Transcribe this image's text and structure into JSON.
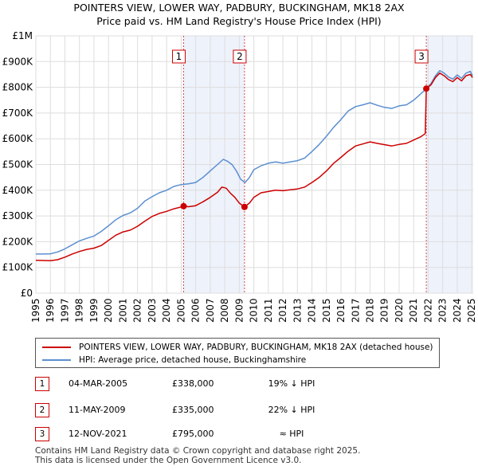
{
  "chart_data": {
    "type": "line",
    "title": "POINTERS VIEW, LOWER WAY, PADBURY, BUCKINGHAM, MK18 2AX",
    "subtitle": "Price paid vs. HM Land Registry's House Price Index (HPI)",
    "xlim": [
      1995,
      2025.1
    ],
    "ylim": [
      0,
      1000000
    ],
    "x_ticks": [
      "1995",
      "1996",
      "1997",
      "1998",
      "1999",
      "2000",
      "2001",
      "2002",
      "2003",
      "2004",
      "2005",
      "2006",
      "2007",
      "2008",
      "2009",
      "2010",
      "2011",
      "2012",
      "2013",
      "2014",
      "2015",
      "2016",
      "2017",
      "2018",
      "2019",
      "2020",
      "2021",
      "2022",
      "2023",
      "2024",
      "2025"
    ],
    "y_ticks": [
      {
        "value": 0,
        "label": "£0"
      },
      {
        "value": 100000,
        "label": "£100K"
      },
      {
        "value": 200000,
        "label": "£200K"
      },
      {
        "value": 300000,
        "label": "£300K"
      },
      {
        "value": 400000,
        "label": "£400K"
      },
      {
        "value": 500000,
        "label": "£500K"
      },
      {
        "value": 600000,
        "label": "£600K"
      },
      {
        "value": 700000,
        "label": "£700K"
      },
      {
        "value": 800000,
        "label": "£800K"
      },
      {
        "value": 900000,
        "label": "£900K"
      },
      {
        "value": 1000000,
        "label": "£1M"
      }
    ],
    "shaded_ranges": [
      [
        2005.17,
        2009.36
      ],
      [
        2021.87,
        2025.1
      ]
    ],
    "series": [
      {
        "name": "POINTERS VIEW, LOWER WAY, PADBURY, BUCKINGHAM, MK18 2AX (detached house)",
        "color": "#cc0000",
        "points": [
          [
            1995,
            128000
          ],
          [
            1995.5,
            127000
          ],
          [
            1996,
            126000
          ],
          [
            1996.5,
            130000
          ],
          [
            1997,
            140000
          ],
          [
            1997.5,
            152000
          ],
          [
            1998,
            162000
          ],
          [
            1998.5,
            170000
          ],
          [
            1999,
            175000
          ],
          [
            1999.5,
            185000
          ],
          [
            2000,
            205000
          ],
          [
            2000.5,
            225000
          ],
          [
            2001,
            238000
          ],
          [
            2001.5,
            245000
          ],
          [
            2002,
            260000
          ],
          [
            2002.5,
            280000
          ],
          [
            2003,
            298000
          ],
          [
            2003.5,
            310000
          ],
          [
            2004,
            318000
          ],
          [
            2004.5,
            328000
          ],
          [
            2005,
            335000
          ],
          [
            2005.17,
            338000
          ],
          [
            2005.5,
            336000
          ],
          [
            2006,
            340000
          ],
          [
            2006.5,
            355000
          ],
          [
            2007,
            372000
          ],
          [
            2007.5,
            392000
          ],
          [
            2007.8,
            412000
          ],
          [
            2008.1,
            408000
          ],
          [
            2008.4,
            388000
          ],
          [
            2008.7,
            372000
          ],
          [
            2009,
            350000
          ],
          [
            2009.36,
            335000
          ],
          [
            2009.7,
            350000
          ],
          [
            2010,
            372000
          ],
          [
            2010.5,
            390000
          ],
          [
            2011,
            395000
          ],
          [
            2011.5,
            400000
          ],
          [
            2012,
            398000
          ],
          [
            2012.5,
            402000
          ],
          [
            2013,
            405000
          ],
          [
            2013.5,
            412000
          ],
          [
            2014,
            430000
          ],
          [
            2014.5,
            450000
          ],
          [
            2015,
            475000
          ],
          [
            2015.5,
            505000
          ],
          [
            2016,
            528000
          ],
          [
            2016.5,
            552000
          ],
          [
            2017,
            572000
          ],
          [
            2017.5,
            580000
          ],
          [
            2018,
            588000
          ],
          [
            2018.5,
            582000
          ],
          [
            2019,
            577000
          ],
          [
            2019.5,
            572000
          ],
          [
            2020,
            578000
          ],
          [
            2020.5,
            582000
          ],
          [
            2021,
            595000
          ],
          [
            2021.5,
            608000
          ],
          [
            2021.8,
            620000
          ],
          [
            2021.87,
            795000
          ],
          [
            2022.2,
            810000
          ],
          [
            2022.5,
            838000
          ],
          [
            2022.8,
            855000
          ],
          [
            2023.1,
            845000
          ],
          [
            2023.4,
            830000
          ],
          [
            2023.7,
            822000
          ],
          [
            2024,
            838000
          ],
          [
            2024.3,
            825000
          ],
          [
            2024.6,
            845000
          ],
          [
            2024.9,
            850000
          ],
          [
            2025.05,
            838000
          ]
        ]
      },
      {
        "name": "HPI: Average price, detached house, Buckinghamshire",
        "color": "#5b8fd0",
        "points": [
          [
            1995,
            152000
          ],
          [
            1995.5,
            152000
          ],
          [
            1996,
            153000
          ],
          [
            1996.5,
            160000
          ],
          [
            1997,
            172000
          ],
          [
            1997.5,
            188000
          ],
          [
            1998,
            203000
          ],
          [
            1998.5,
            213000
          ],
          [
            1999,
            222000
          ],
          [
            1999.5,
            240000
          ],
          [
            2000,
            262000
          ],
          [
            2000.5,
            285000
          ],
          [
            2001,
            302000
          ],
          [
            2001.5,
            312000
          ],
          [
            2002,
            330000
          ],
          [
            2002.5,
            358000
          ],
          [
            2003,
            375000
          ],
          [
            2003.5,
            390000
          ],
          [
            2004,
            400000
          ],
          [
            2004.5,
            415000
          ],
          [
            2005,
            422000
          ],
          [
            2005.5,
            425000
          ],
          [
            2006,
            430000
          ],
          [
            2006.5,
            450000
          ],
          [
            2007,
            475000
          ],
          [
            2007.5,
            500000
          ],
          [
            2007.9,
            520000
          ],
          [
            2008.2,
            512000
          ],
          [
            2008.5,
            500000
          ],
          [
            2008.8,
            475000
          ],
          [
            2009.1,
            442000
          ],
          [
            2009.4,
            430000
          ],
          [
            2009.7,
            450000
          ],
          [
            2010,
            480000
          ],
          [
            2010.5,
            495000
          ],
          [
            2011,
            505000
          ],
          [
            2011.5,
            510000
          ],
          [
            2012,
            505000
          ],
          [
            2012.5,
            510000
          ],
          [
            2013,
            515000
          ],
          [
            2013.5,
            525000
          ],
          [
            2014,
            550000
          ],
          [
            2014.5,
            578000
          ],
          [
            2015,
            610000
          ],
          [
            2015.5,
            645000
          ],
          [
            2016,
            675000
          ],
          [
            2016.5,
            708000
          ],
          [
            2017,
            725000
          ],
          [
            2017.5,
            732000
          ],
          [
            2018,
            740000
          ],
          [
            2018.5,
            730000
          ],
          [
            2019,
            722000
          ],
          [
            2019.5,
            718000
          ],
          [
            2020,
            728000
          ],
          [
            2020.5,
            732000
          ],
          [
            2021,
            750000
          ],
          [
            2021.5,
            775000
          ],
          [
            2021.87,
            795000
          ],
          [
            2022.2,
            815000
          ],
          [
            2022.5,
            845000
          ],
          [
            2022.8,
            865000
          ],
          [
            2023.1,
            855000
          ],
          [
            2023.4,
            840000
          ],
          [
            2023.7,
            832000
          ],
          [
            2024,
            848000
          ],
          [
            2024.3,
            835000
          ],
          [
            2024.6,
            855000
          ],
          [
            2024.9,
            862000
          ],
          [
            2025.05,
            845000
          ]
        ]
      }
    ],
    "markers": [
      {
        "label": "1",
        "x": 2005.17,
        "y": 338000
      },
      {
        "label": "2",
        "x": 2009.36,
        "y": 335000
      },
      {
        "label": "3",
        "x": 2021.87,
        "y": 795000
      }
    ]
  },
  "legend": {
    "property_label": "POINTERS VIEW, LOWER WAY, PADBURY, BUCKINGHAM, MK18 2AX (detached house)",
    "hpi_label": "HPI: Average price, detached house, Buckinghamshire"
  },
  "sales": [
    {
      "num": "1",
      "date": "04-MAR-2005",
      "price": "£338,000",
      "hpi": "19% ↓ HPI"
    },
    {
      "num": "2",
      "date": "11-MAY-2009",
      "price": "£335,000",
      "hpi": "22% ↓ HPI"
    },
    {
      "num": "3",
      "date": "12-NOV-2021",
      "price": "£795,000",
      "hpi": "≈ HPI"
    }
  ],
  "footer": {
    "line1": "Contains HM Land Registry data © Crown copyright and database right 2025.",
    "line2": "This data is licensed under the Open Government Licence v3.0."
  }
}
